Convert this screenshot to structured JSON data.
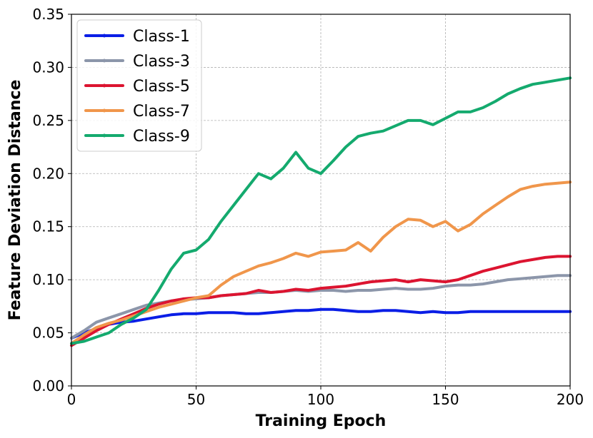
{
  "chart_data": {
    "type": "line",
    "title": "",
    "xlabel": "Training Epoch",
    "ylabel": "Feature Deviation Distance",
    "xlim": [
      0,
      200
    ],
    "ylim": [
      0.0,
      0.35
    ],
    "xticks": [
      0,
      50,
      100,
      150,
      200
    ],
    "xtick_labels": [
      "0",
      "50",
      "100",
      "150",
      "200"
    ],
    "yticks": [
      0.0,
      0.05,
      0.1,
      0.15,
      0.2,
      0.25,
      0.3,
      0.35
    ],
    "ytick_labels": [
      "0.00",
      "0.05",
      "0.10",
      "0.15",
      "0.20",
      "0.25",
      "0.30",
      "0.35"
    ],
    "grid": true,
    "legend_position": "top-left",
    "series": [
      {
        "name": "Class-1",
        "color": "#0a1ee6",
        "x": [
          0,
          5,
          10,
          15,
          20,
          25,
          30,
          35,
          40,
          45,
          50,
          55,
          60,
          65,
          70,
          75,
          80,
          85,
          90,
          95,
          100,
          105,
          110,
          115,
          120,
          125,
          130,
          135,
          140,
          145,
          150,
          155,
          160,
          165,
          170,
          175,
          180,
          185,
          190,
          195,
          200
        ],
        "y": [
          0.045,
          0.05,
          0.054,
          0.058,
          0.06,
          0.061,
          0.063,
          0.065,
          0.067,
          0.068,
          0.068,
          0.069,
          0.069,
          0.069,
          0.068,
          0.068,
          0.069,
          0.07,
          0.071,
          0.071,
          0.072,
          0.072,
          0.071,
          0.07,
          0.07,
          0.071,
          0.071,
          0.07,
          0.069,
          0.07,
          0.069,
          0.069,
          0.07,
          0.07,
          0.07,
          0.07,
          0.07,
          0.07,
          0.07,
          0.07,
          0.07
        ]
      },
      {
        "name": "Class-3",
        "color": "#8c96aa",
        "x": [
          0,
          5,
          10,
          15,
          20,
          25,
          30,
          35,
          40,
          45,
          50,
          55,
          60,
          65,
          70,
          75,
          80,
          85,
          90,
          95,
          100,
          105,
          110,
          115,
          120,
          125,
          130,
          135,
          140,
          145,
          150,
          155,
          160,
          165,
          170,
          175,
          180,
          185,
          190,
          195,
          200
        ],
        "y": [
          0.045,
          0.052,
          0.06,
          0.064,
          0.068,
          0.072,
          0.076,
          0.078,
          0.08,
          0.081,
          0.082,
          0.083,
          0.085,
          0.086,
          0.087,
          0.088,
          0.088,
          0.089,
          0.09,
          0.089,
          0.09,
          0.09,
          0.089,
          0.09,
          0.09,
          0.091,
          0.092,
          0.091,
          0.091,
          0.092,
          0.094,
          0.095,
          0.095,
          0.096,
          0.098,
          0.1,
          0.101,
          0.102,
          0.103,
          0.104,
          0.104
        ]
      },
      {
        "name": "Class-5",
        "color": "#dc1430",
        "x": [
          0,
          5,
          10,
          15,
          20,
          25,
          30,
          35,
          40,
          45,
          50,
          55,
          60,
          65,
          70,
          75,
          80,
          85,
          90,
          95,
          100,
          105,
          110,
          115,
          120,
          125,
          130,
          135,
          140,
          145,
          150,
          155,
          160,
          165,
          170,
          175,
          180,
          185,
          190,
          195,
          200
        ],
        "y": [
          0.038,
          0.045,
          0.052,
          0.058,
          0.063,
          0.068,
          0.073,
          0.077,
          0.08,
          0.082,
          0.083,
          0.083,
          0.085,
          0.086,
          0.087,
          0.09,
          0.088,
          0.089,
          0.091,
          0.09,
          0.092,
          0.093,
          0.094,
          0.096,
          0.098,
          0.099,
          0.1,
          0.098,
          0.1,
          0.099,
          0.098,
          0.1,
          0.104,
          0.108,
          0.111,
          0.114,
          0.117,
          0.119,
          0.121,
          0.122,
          0.122
        ]
      },
      {
        "name": "Class-7",
        "color": "#f0964b",
        "x": [
          0,
          5,
          10,
          15,
          20,
          25,
          30,
          35,
          40,
          45,
          50,
          55,
          60,
          65,
          70,
          75,
          80,
          85,
          90,
          95,
          100,
          105,
          110,
          115,
          120,
          125,
          130,
          135,
          140,
          145,
          150,
          155,
          160,
          165,
          170,
          175,
          180,
          185,
          190,
          195,
          200
        ],
        "y": [
          0.04,
          0.048,
          0.055,
          0.059,
          0.062,
          0.066,
          0.07,
          0.074,
          0.077,
          0.08,
          0.083,
          0.085,
          0.095,
          0.103,
          0.108,
          0.113,
          0.116,
          0.12,
          0.125,
          0.122,
          0.126,
          0.127,
          0.128,
          0.135,
          0.127,
          0.14,
          0.15,
          0.157,
          0.156,
          0.15,
          0.155,
          0.146,
          0.152,
          0.162,
          0.17,
          0.178,
          0.185,
          0.188,
          0.19,
          0.191,
          0.192
        ]
      },
      {
        "name": "Class-9",
        "color": "#14aa6e",
        "x": [
          0,
          5,
          10,
          15,
          20,
          25,
          30,
          35,
          40,
          45,
          50,
          55,
          60,
          65,
          70,
          75,
          80,
          85,
          90,
          95,
          100,
          105,
          110,
          115,
          120,
          125,
          130,
          135,
          140,
          145,
          150,
          155,
          160,
          165,
          170,
          175,
          180,
          185,
          190,
          195,
          200
        ],
        "y": [
          0.04,
          0.042,
          0.046,
          0.05,
          0.058,
          0.064,
          0.072,
          0.09,
          0.11,
          0.125,
          0.128,
          0.138,
          0.155,
          0.17,
          0.185,
          0.2,
          0.195,
          0.205,
          0.22,
          0.205,
          0.2,
          0.212,
          0.225,
          0.235,
          0.238,
          0.24,
          0.245,
          0.25,
          0.25,
          0.246,
          0.252,
          0.258,
          0.258,
          0.262,
          0.268,
          0.275,
          0.28,
          0.284,
          0.286,
          0.288,
          0.29
        ]
      }
    ]
  }
}
